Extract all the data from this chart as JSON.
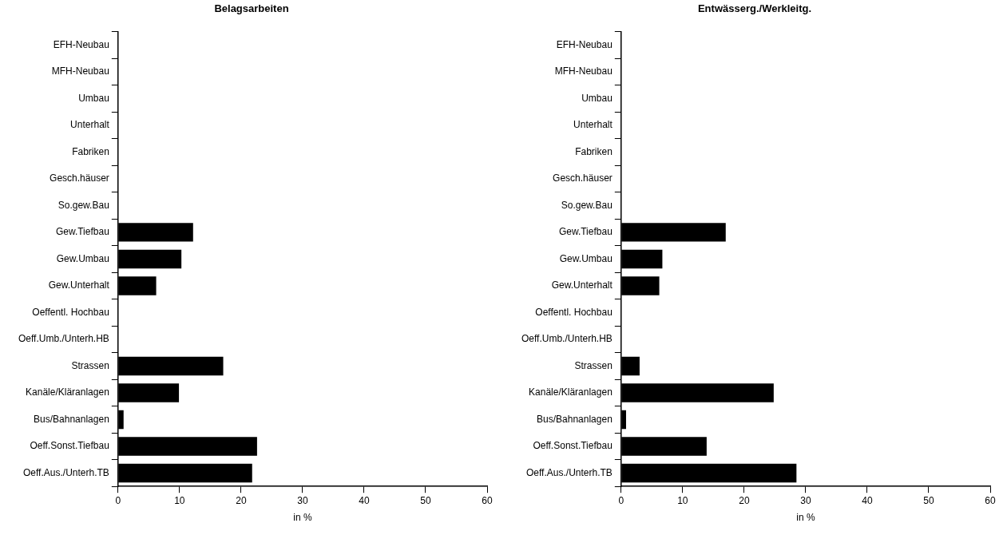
{
  "chart_data": [
    {
      "type": "bar",
      "orientation": "horizontal",
      "title": "Belagsarbeiten",
      "xlabel": "in %",
      "categories": [
        "EFH-Neubau",
        "MFH-Neubau",
        "Umbau",
        "Unterhalt",
        "Fabriken",
        "Gesch.häuser",
        "So.gew.Bau",
        "Gew.Tiefbau",
        "Gew.Umbau",
        "Gew.Unterhalt",
        "Oeffentl. Hochbau",
        "Oeff.Umb./Unterh.HB",
        "Strassen",
        "Kanäle/Kläranlagen",
        "Bus/Bahnanlagen",
        "Oeff.Sonst.Tiefbau",
        "Oeff.Aus./Unterh.TB"
      ],
      "values": [
        0,
        0,
        0,
        0,
        0,
        0,
        0,
        12.2,
        10.3,
        6.2,
        0,
        0,
        17.1,
        9.9,
        0.9,
        22.6,
        21.8
      ],
      "color": "#000000",
      "xlim": [
        0,
        60
      ],
      "xticks": [
        0,
        10,
        20,
        30,
        40,
        50,
        60
      ],
      "grid": false,
      "legend": false
    },
    {
      "type": "bar",
      "orientation": "horizontal",
      "title": "Entwässerg./Werkleitg.",
      "xlabel": "in %",
      "categories": [
        "EFH-Neubau",
        "MFH-Neubau",
        "Umbau",
        "Unterhalt",
        "Fabriken",
        "Gesch.häuser",
        "So.gew.Bau",
        "Gew.Tiefbau",
        "Gew.Umbau",
        "Gew.Unterhalt",
        "Oeffentl. Hochbau",
        "Oeff.Umb./Unterh.HB",
        "Strassen",
        "Kanäle/Kläranlagen",
        "Bus/Bahnanlagen",
        "Oeff.Sonst.Tiefbau",
        "Oeff.Aus./Unterh.TB"
      ],
      "values": [
        0,
        0,
        0,
        0,
        0,
        0,
        0,
        17.0,
        6.7,
        6.2,
        0,
        0,
        3.0,
        24.8,
        0.8,
        13.9,
        28.5
      ],
      "color": "#000000",
      "xlim": [
        0,
        60
      ],
      "xticks": [
        0,
        10,
        20,
        30,
        40,
        50,
        60
      ],
      "grid": false,
      "legend": false
    }
  ]
}
